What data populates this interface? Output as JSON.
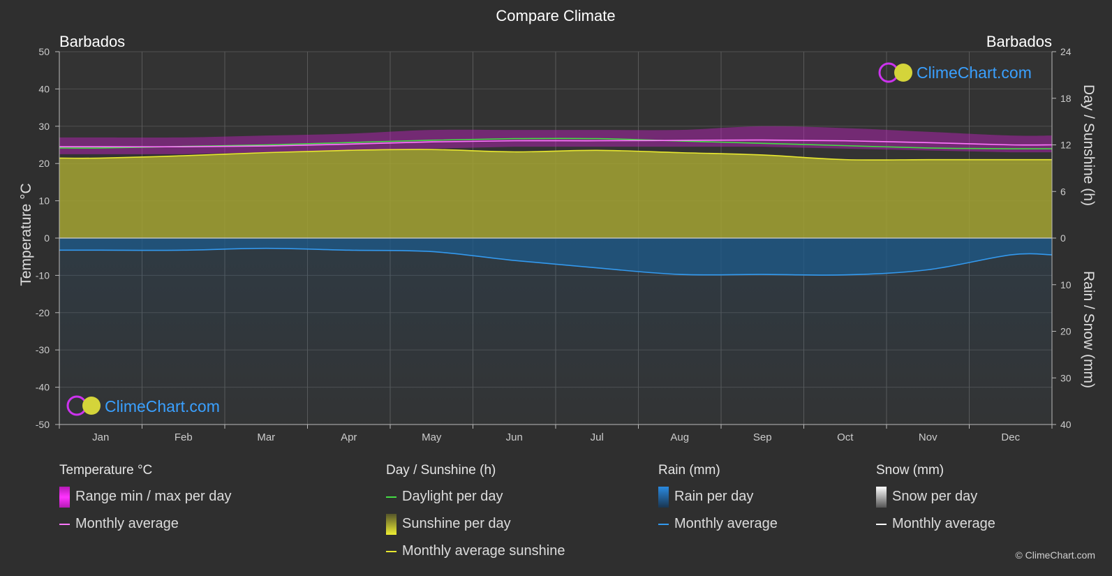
{
  "title": "Compare Climate",
  "location_left": "Barbados",
  "location_right": "Barbados",
  "watermark": "ClimeChart.com",
  "copyright": "© ClimeChart.com",
  "colors": {
    "background": "#2f2f2f",
    "grid": "#555555",
    "temp_range": "#d21fd2",
    "temp_avg": "#ff77ff",
    "daylight": "#44dd44",
    "sunshine_fill": "#a3a332",
    "sunshine_avg": "#e8e830",
    "rain_fill": "#1d5a8a",
    "rain_avg": "#3399ee",
    "snow_avg": "#ffffff",
    "brand_blue": "#3aa0ff"
  },
  "legend": [
    {
      "header": "Temperature °C",
      "items": [
        {
          "label": "Range min / max per day",
          "swatch": "box",
          "color": "#d21fd2"
        },
        {
          "label": "Monthly average",
          "swatch": "line",
          "color": "#ff77ff"
        }
      ]
    },
    {
      "header": "Day / Sunshine (h)",
      "items": [
        {
          "label": "Daylight per day",
          "swatch": "line",
          "color": "#44dd44"
        },
        {
          "label": "Sunshine per day",
          "swatch": "box",
          "color": "#c9c93a"
        },
        {
          "label": "Monthly average sunshine",
          "swatch": "line",
          "color": "#e8e830"
        }
      ]
    },
    {
      "header": "Rain (mm)",
      "items": [
        {
          "label": "Rain per day",
          "swatch": "box",
          "color": "#2a7ac0"
        },
        {
          "label": "Monthly average",
          "swatch": "line",
          "color": "#3399ee"
        }
      ]
    },
    {
      "header": "Snow (mm)",
      "items": [
        {
          "label": "Snow per day",
          "swatch": "box",
          "color": "#cfcfcf"
        },
        {
          "label": "Monthly average",
          "swatch": "line",
          "color": "#ffffff"
        }
      ]
    }
  ],
  "chart_data": {
    "type": "area",
    "title": "Compare Climate",
    "categories": [
      "Jan",
      "Feb",
      "Mar",
      "Apr",
      "May",
      "Jun",
      "Jul",
      "Aug",
      "Sep",
      "Oct",
      "Nov",
      "Dec"
    ],
    "y_left": {
      "label": "Temperature °C",
      "range": [
        -50,
        50
      ],
      "ticks": [
        50,
        40,
        30,
        20,
        10,
        0,
        -10,
        -20,
        -30,
        -40,
        -50
      ]
    },
    "y_right_top": {
      "label": "Day / Sunshine (h)",
      "range": [
        0,
        24
      ],
      "ticks": [
        24,
        18,
        12,
        6,
        0
      ]
    },
    "y_right_bottom": {
      "label": "Rain / Snow (mm)",
      "range": [
        0,
        40
      ],
      "ticks": [
        0,
        10,
        20,
        30,
        40
      ]
    },
    "grid": true,
    "series": [
      {
        "name": "Range min / max per day",
        "unit": "°C",
        "min": [
          22.5,
          22.5,
          23,
          23.5,
          24,
          24.5,
          24.5,
          24.5,
          24.5,
          24,
          23.5,
          23
        ],
        "max": [
          27,
          27,
          27.5,
          28,
          29,
          29,
          29,
          29,
          30,
          29.5,
          28.5,
          27.5
        ]
      },
      {
        "name": "Monthly average",
        "unit": "°C",
        "values": [
          24.5,
          24.5,
          24.7,
          25.2,
          25.8,
          26.1,
          26.1,
          26.2,
          26.3,
          26.1,
          25.6,
          25.0
        ]
      },
      {
        "name": "Daylight per day",
        "unit": "h",
        "values": [
          11.6,
          11.8,
          12.0,
          12.3,
          12.6,
          12.8,
          12.8,
          12.5,
          12.2,
          11.9,
          11.6,
          11.5
        ]
      },
      {
        "name": "Monthly average sunshine",
        "unit": "h",
        "values": [
          10.3,
          10.6,
          11.0,
          11.3,
          11.4,
          11.1,
          11.3,
          11.0,
          10.7,
          10.1,
          10.1,
          10.1
        ]
      },
      {
        "name": "Monthly average",
        "unit": "mm",
        "values": [
          2.6,
          2.6,
          2.2,
          2.6,
          2.9,
          4.8,
          6.4,
          7.8,
          7.8,
          7.9,
          6.8,
          3.6
        ]
      },
      {
        "name": "Snow monthly average",
        "unit": "mm",
        "values": [
          0,
          0,
          0,
          0,
          0,
          0,
          0,
          0,
          0,
          0,
          0,
          0
        ]
      }
    ]
  }
}
